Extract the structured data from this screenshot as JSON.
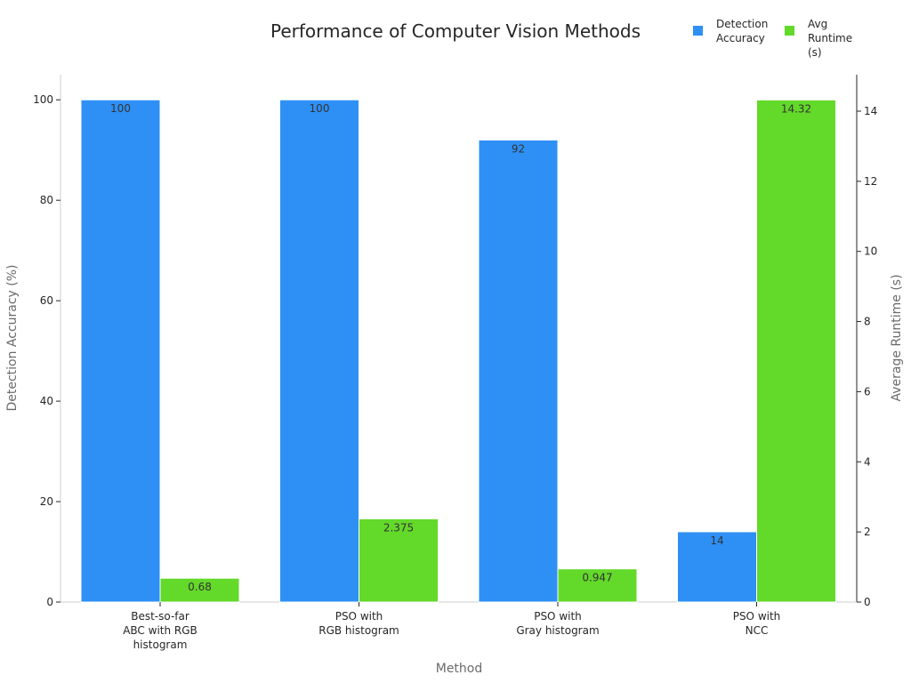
{
  "chart_data": {
    "type": "bar",
    "title": "Performance of Computer Vision Methods",
    "xlabel": "Method",
    "ylabel_left": "Detection Accuracy (%)",
    "ylabel_right": "Average Runtime (s)",
    "categories": [
      [
        "Best-so-far",
        "ABC with RGB",
        "histogram"
      ],
      [
        "PSO with",
        "RGB histogram"
      ],
      [
        "PSO with",
        "Gray histogram"
      ],
      [
        "PSO with",
        "NCC"
      ]
    ],
    "series": [
      {
        "name": "Detection Accuracy",
        "legend_lines": [
          "Detection",
          "Accuracy"
        ],
        "axis": "left",
        "color": "#2e90f5",
        "values": [
          100,
          100,
          92,
          14
        ],
        "labels": [
          "100",
          "100",
          "92",
          "14"
        ]
      },
      {
        "name": "Avg Runtime (s)",
        "legend_lines": [
          "Avg",
          "Runtime",
          "(s)"
        ],
        "axis": "right",
        "color": "#63d92a",
        "values": [
          0.68,
          2.375,
          0.947,
          14.32
        ],
        "labels": [
          "0.68",
          "2.375",
          "0.947",
          "14.32"
        ]
      }
    ],
    "ylim_left": [
      0,
      105
    ],
    "yticks_left": [
      0,
      20,
      40,
      60,
      80,
      100
    ],
    "ylim_right": [
      0,
      15.04
    ],
    "yticks_right": [
      0,
      2,
      4,
      6,
      8,
      10,
      12,
      14
    ],
    "grid": false,
    "legend_position": "top-right"
  }
}
